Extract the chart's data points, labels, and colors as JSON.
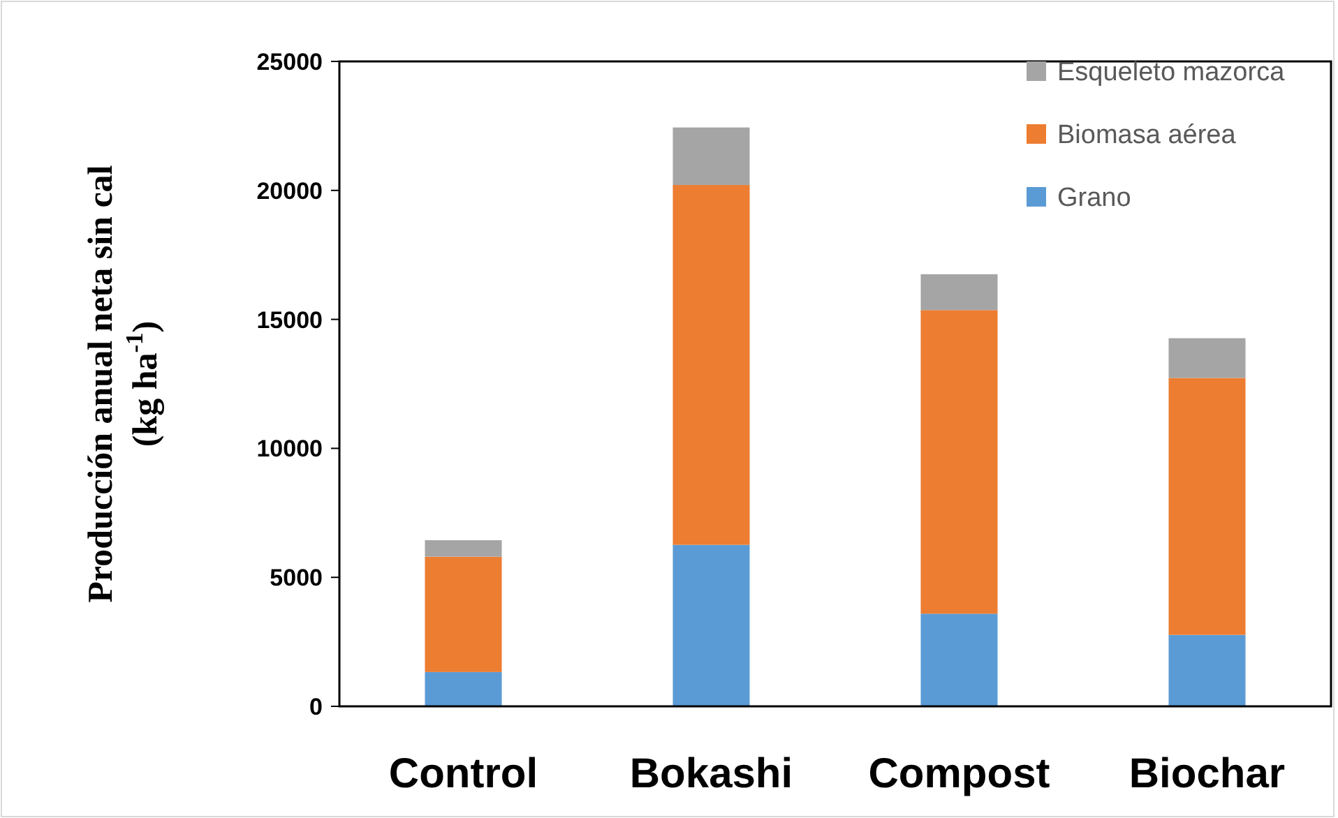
{
  "chart_data": {
    "type": "bar",
    "stacked": true,
    "ylabel": "Producción anual neta sin cal\n(kg ha$^{-1}$)",
    "categories": [
      "Control",
      "Bokashi",
      "Compost",
      "Biochar"
    ],
    "series": [
      {
        "name": "Grano",
        "color": "#5b9bd5",
        "values": [
          1330,
          6260,
          3590,
          2770
        ]
      },
      {
        "name": "Biomasa aérea",
        "color": "#ed7d31",
        "values": [
          4470,
          13950,
          11770,
          9960
        ]
      },
      {
        "name": "Esqueleto mazorca",
        "color": "#a5a5a5",
        "values": [
          640,
          2230,
          1390,
          1540
        ]
      }
    ],
    "ylim": [
      0,
      25000
    ],
    "yticks": [
      0,
      5000,
      10000,
      15000,
      20000,
      25000
    ],
    "legend": "top right"
  }
}
